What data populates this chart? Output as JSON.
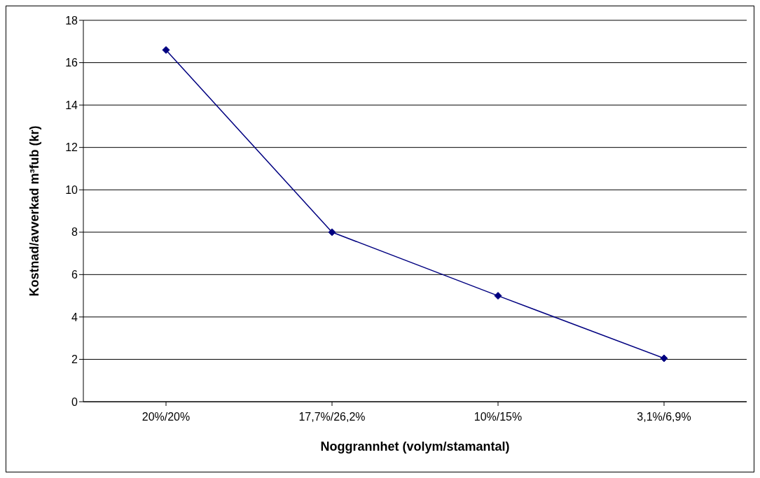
{
  "chart_data": {
    "type": "line",
    "xlabel": "Noggrannhet (volym/stamantal)",
    "ylabel": "Kostnad/avverkad m³fub (kr)",
    "categories": [
      "20%/20%",
      "17,7%/26,2%",
      "10%/15%",
      "3,1%/6,9%"
    ],
    "series": [
      {
        "color": "#000080",
        "values": [
          16.6,
          8.0,
          5.0,
          2.05
        ]
      }
    ],
    "ylim": [
      0,
      18
    ],
    "yticks": [
      0,
      2,
      4,
      6,
      8,
      10,
      12,
      14,
      16,
      18
    ],
    "grid": "y",
    "marker": "diamond",
    "line_style": "solid"
  }
}
